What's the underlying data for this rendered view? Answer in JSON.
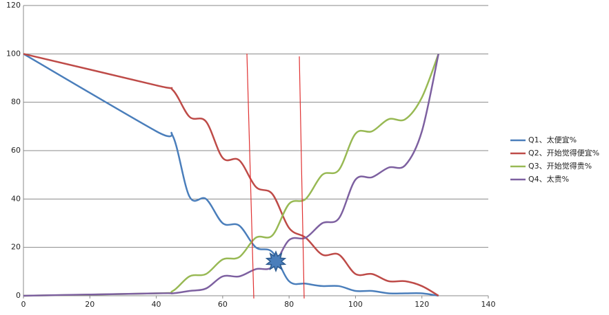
{
  "chart_data": {
    "type": "line",
    "x": [
      0,
      40,
      45,
      50,
      55,
      60,
      65,
      70,
      75,
      80,
      85,
      90,
      95,
      100,
      105,
      110,
      115,
      120,
      125
    ],
    "series": [
      {
        "name": "Q1、太便宜%",
        "color": "#4a7ebb",
        "values": [
          100,
          68,
          66,
          41,
          40,
          30,
          29,
          20,
          18,
          6,
          5,
          4,
          4,
          2,
          2,
          1,
          1,
          1,
          0
        ]
      },
      {
        "name": "Q2、开始觉得便宜%",
        "color": "#be4b48",
        "values": [
          100,
          87,
          85,
          74,
          72,
          57,
          56,
          45,
          42,
          28,
          24,
          17,
          17,
          9,
          9,
          6,
          6,
          4,
          0
        ]
      },
      {
        "name": "Q3、开始觉得贵%",
        "color": "#98b954",
        "values": [
          0,
          1,
          2,
          8,
          9,
          15,
          16,
          24,
          25,
          38,
          40,
          50,
          52,
          67,
          68,
          73,
          73,
          82,
          100
        ]
      },
      {
        "name": "Q4、太贵%",
        "color": "#7d60a0",
        "values": [
          0,
          1,
          1,
          2,
          3,
          8,
          8,
          11,
          12,
          23,
          24,
          30,
          32,
          48,
          49,
          53,
          54,
          68,
          100
        ]
      }
    ],
    "xlim": [
      0,
      140
    ],
    "xticks": [
      0,
      20,
      40,
      60,
      80,
      100,
      120,
      140
    ],
    "ylim": [
      0,
      120
    ],
    "yticks": [
      0,
      20,
      40,
      60,
      80,
      100,
      120
    ],
    "grid": true,
    "legend": "right"
  }
}
